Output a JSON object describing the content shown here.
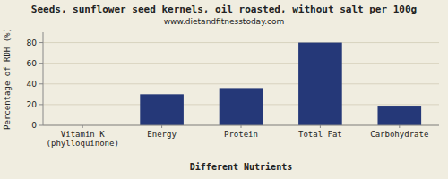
{
  "chart_data": {
    "type": "bar",
    "title": "Seeds, sunflower seed kernels, oil roasted, without salt per 100g",
    "subtitle": "www.dietandfitnesstoday.com",
    "xlabel": "Different Nutrients",
    "ylabel": "Percentage of RDH (%)",
    "categories": [
      "Vitamin K (phylloquinone)",
      "Energy",
      "Protein",
      "Total Fat",
      "Carbohydrate"
    ],
    "values": [
      0,
      30,
      36,
      80,
      19
    ],
    "color": "#253878",
    "ylim": [
      0,
      90
    ],
    "yticks": [
      0,
      20,
      40,
      60,
      80
    ],
    "grid": true
  }
}
